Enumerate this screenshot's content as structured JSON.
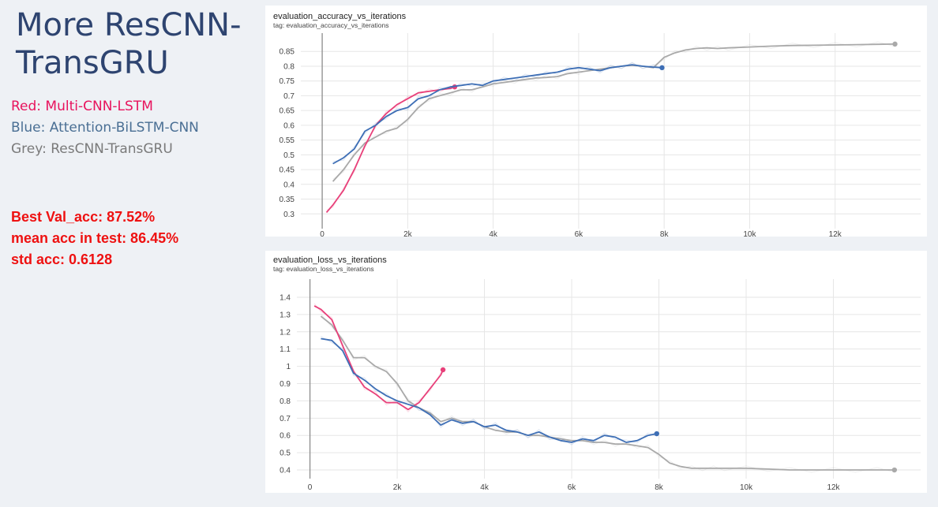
{
  "slide": {
    "title": "More ResCNN-TransGRU",
    "legend": [
      {
        "text": "Red: Multi-CNN-LSTM",
        "color": "#e8135d"
      },
      {
        "text": "Blue: Attention-BiLSTM-CNN",
        "color": "#4a6f94"
      },
      {
        "text": "Grey: ResCNN-TransGRU",
        "color": "#7a7a7a"
      }
    ],
    "stats": [
      "Best Val_acc: 87.52%",
      "mean acc in test: 86.45%",
      "std acc: 0.6128"
    ]
  },
  "chart_data": [
    {
      "type": "line",
      "title": "evaluation_accuracy_vs_iterations",
      "subtitle": "tag: evaluation_accuracy_vs_iterations",
      "xlim": [
        -500,
        14000
      ],
      "ylim": [
        0.25,
        0.88
      ],
      "x_ticks": [
        0,
        2000,
        4000,
        6000,
        8000,
        10000,
        12000
      ],
      "x_tick_labels": [
        "0",
        "2k",
        "4k",
        "6k",
        "8k",
        "10k",
        "12k"
      ],
      "y_ticks": [
        0.3,
        0.35,
        0.4,
        0.45,
        0.5,
        0.55,
        0.6,
        0.65,
        0.7,
        0.75,
        0.8,
        0.85
      ],
      "y_tick_labels": [
        "0.3",
        "0.35",
        "0.4",
        "0.45",
        "0.5",
        "0.55",
        "0.6",
        "0.65",
        "0.7",
        "0.75",
        "0.8",
        "0.85"
      ],
      "grid": true,
      "series": [
        {
          "color": "#a9a9a9",
          "x": [
            250,
            500,
            750,
            1000,
            1250,
            1500,
            1750,
            2000,
            2250,
            2500,
            2750,
            3000,
            3250,
            3500,
            3750,
            4000,
            4250,
            4500,
            4750,
            5000,
            5250,
            5500,
            5750,
            6000,
            6250,
            6500,
            6750,
            7000,
            7250,
            7500,
            7750,
            8000,
            8250,
            8500,
            8750,
            9000,
            9250,
            9500,
            10000,
            10500,
            11000,
            11500,
            12000,
            12500,
            13000,
            13400
          ],
          "y": [
            0.41,
            0.45,
            0.5,
            0.54,
            0.56,
            0.58,
            0.59,
            0.62,
            0.66,
            0.69,
            0.7,
            0.71,
            0.72,
            0.72,
            0.73,
            0.74,
            0.745,
            0.75,
            0.755,
            0.76,
            0.762,
            0.765,
            0.775,
            0.78,
            0.785,
            0.79,
            0.795,
            0.8,
            0.803,
            0.8,
            0.795,
            0.83,
            0.845,
            0.855,
            0.86,
            0.862,
            0.86,
            0.862,
            0.865,
            0.868,
            0.87,
            0.871,
            0.872,
            0.873,
            0.874,
            0.875
          ]
        },
        {
          "color": "#e8407a",
          "x": [
            100,
            250,
            500,
            750,
            1000,
            1250,
            1500,
            1750,
            2000,
            2250,
            2500,
            2750,
            3000,
            3100
          ],
          "y": [
            0.305,
            0.33,
            0.38,
            0.45,
            0.53,
            0.6,
            0.64,
            0.67,
            0.69,
            0.71,
            0.715,
            0.72,
            0.725,
            0.73
          ]
        },
        {
          "color": "#3d6eb5",
          "x": [
            250,
            500,
            750,
            1000,
            1250,
            1500,
            1750,
            2000,
            2250,
            2500,
            2750,
            3000,
            3250,
            3500,
            3750,
            4000,
            4250,
            4500,
            4750,
            5000,
            5250,
            5500,
            5750,
            6000,
            6250,
            6500,
            6750,
            7000,
            7250,
            7500,
            7750,
            7950
          ],
          "y": [
            0.47,
            0.49,
            0.52,
            0.58,
            0.6,
            0.63,
            0.65,
            0.66,
            0.69,
            0.7,
            0.72,
            0.73,
            0.735,
            0.74,
            0.735,
            0.75,
            0.755,
            0.76,
            0.765,
            0.77,
            0.775,
            0.78,
            0.79,
            0.795,
            0.79,
            0.785,
            0.795,
            0.8,
            0.805,
            0.8,
            0.797,
            0.795
          ]
        }
      ]
    },
    {
      "type": "line",
      "title": "evaluation_loss_vs_iterations",
      "subtitle": "tag: evaluation_loss_vs_iterations",
      "xlim": [
        -300,
        14000
      ],
      "ylim": [
        0.35,
        1.45
      ],
      "x_ticks": [
        0,
        2000,
        4000,
        6000,
        8000,
        10000,
        12000
      ],
      "x_tick_labels": [
        "0",
        "2k",
        "4k",
        "6k",
        "8k",
        "10k",
        "12k"
      ],
      "y_ticks": [
        0.4,
        0.5,
        0.6,
        0.7,
        0.8,
        0.9,
        1,
        1.1,
        1.2,
        1.3,
        1.4
      ],
      "y_tick_labels": [
        "0.4",
        "0.5",
        "0.6",
        "0.7",
        "0.8",
        "0.9",
        "1",
        "1.1",
        "1.2",
        "1.3",
        "1.4"
      ],
      "grid": true,
      "series": [
        {
          "color": "#a9a9a9",
          "x": [
            250,
            500,
            750,
            1000,
            1250,
            1500,
            1750,
            2000,
            2250,
            2500,
            2750,
            3000,
            3250,
            3500,
            3750,
            4000,
            4250,
            4500,
            4750,
            5000,
            5250,
            5500,
            5750,
            6000,
            6250,
            6500,
            6750,
            7000,
            7250,
            7500,
            7750,
            8000,
            8250,
            8500,
            8750,
            9000,
            9250,
            9500,
            10000,
            10500,
            11000,
            11500,
            12000,
            12500,
            13000,
            13400
          ],
          "y": [
            1.29,
            1.24,
            1.15,
            1.05,
            1.05,
            1.0,
            0.97,
            0.9,
            0.8,
            0.76,
            0.73,
            0.68,
            0.7,
            0.68,
            0.68,
            0.65,
            0.63,
            0.62,
            0.62,
            0.6,
            0.6,
            0.59,
            0.58,
            0.57,
            0.57,
            0.56,
            0.56,
            0.55,
            0.55,
            0.54,
            0.53,
            0.49,
            0.44,
            0.42,
            0.41,
            0.41,
            0.41,
            0.41,
            0.41,
            0.405,
            0.4,
            0.4,
            0.4,
            0.4,
            0.4,
            0.4
          ]
        },
        {
          "color": "#e8407a",
          "x": [
            100,
            250,
            500,
            750,
            1000,
            1250,
            1500,
            1750,
            2000,
            2250,
            2500,
            2750,
            3000,
            3050
          ],
          "y": [
            1.35,
            1.33,
            1.27,
            1.12,
            0.97,
            0.88,
            0.84,
            0.79,
            0.79,
            0.75,
            0.79,
            0.87,
            0.95,
            0.98
          ]
        },
        {
          "color": "#3d6eb5",
          "x": [
            250,
            500,
            750,
            1000,
            1250,
            1500,
            1750,
            2000,
            2250,
            2500,
            2750,
            3000,
            3250,
            3500,
            3750,
            4000,
            4250,
            4500,
            4750,
            5000,
            5250,
            5500,
            5750,
            6000,
            6250,
            6500,
            6750,
            7000,
            7250,
            7500,
            7750,
            7950
          ],
          "y": [
            1.16,
            1.15,
            1.09,
            0.96,
            0.92,
            0.87,
            0.83,
            0.8,
            0.78,
            0.76,
            0.72,
            0.66,
            0.69,
            0.67,
            0.68,
            0.65,
            0.66,
            0.63,
            0.62,
            0.6,
            0.62,
            0.59,
            0.57,
            0.56,
            0.58,
            0.57,
            0.6,
            0.59,
            0.56,
            0.57,
            0.6,
            0.61
          ]
        }
      ]
    }
  ]
}
